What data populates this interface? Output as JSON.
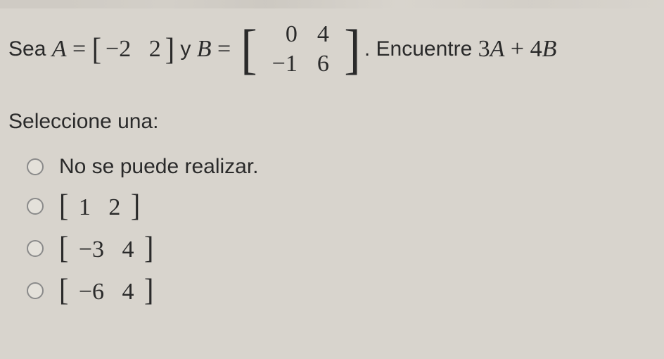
{
  "question": {
    "prefix": "Sea ",
    "A_sym": "A",
    "eq1": " = ",
    "matA": {
      "lbr": "[",
      "vals": "−2   2",
      "rbr": "]"
    },
    "mid": " y ",
    "B_sym": "B",
    "eq2": " = ",
    "matB": {
      "lbr": "[",
      "r1c1": "0",
      "r1c2": "4",
      "r2c1": "−1",
      "r2c2": "6",
      "rbr": "]"
    },
    "dot": ". ",
    "ask1": "Encuentre ",
    "expr_3": "3",
    "expr_A": "A",
    "expr_plus": " + ",
    "expr_4": "4",
    "expr_B": "B"
  },
  "prompt": "Seleccione una:",
  "options": [
    {
      "kind": "text",
      "text": "No se puede realizar."
    },
    {
      "kind": "matrix",
      "lbr": "[",
      "vals": "1   2",
      "rbr": "]"
    },
    {
      "kind": "matrix",
      "lbr": "[",
      "vals": "−3   4",
      "rbr": "]"
    },
    {
      "kind": "matrix",
      "lbr": "[",
      "vals": "−6   4",
      "rbr": "]"
    }
  ],
  "style": {
    "background": "#d8d4cd",
    "text_color": "#2a2a2a",
    "radio_border": "#8a8a8a",
    "question_fontsize": 30,
    "math_fontsize": 34
  }
}
